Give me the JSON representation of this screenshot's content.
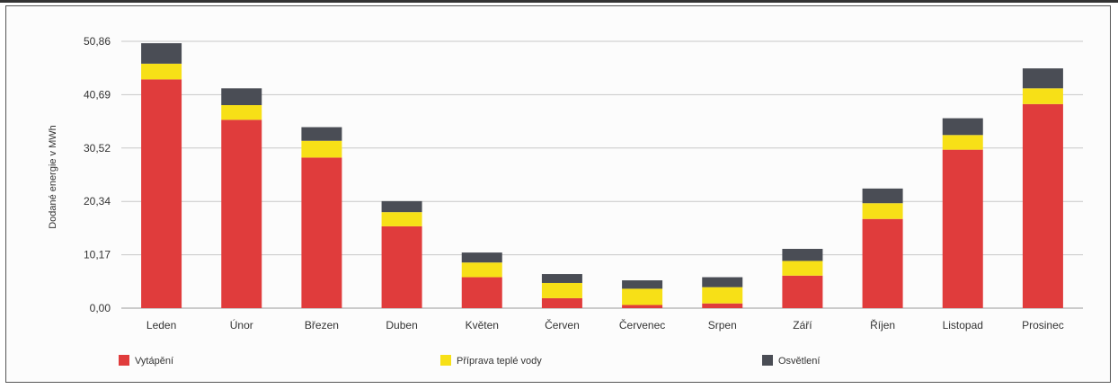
{
  "chart_data": {
    "type": "bar",
    "stacked": true,
    "title": "",
    "xlabel": "",
    "ylabel": "Dodané energie v MWh",
    "ylim": [
      0,
      50.86
    ],
    "yticks": [
      "50,86",
      "40,69",
      "30,52",
      "20,34",
      "10,17",
      "0,00"
    ],
    "ytick_values": [
      50.86,
      40.69,
      30.52,
      20.34,
      10.17,
      0
    ],
    "grid": true,
    "legend_position": "bottom",
    "categories": [
      "Leden",
      "Únor",
      "Březen",
      "Duben",
      "Květen",
      "Červen",
      "Červenec",
      "Srpen",
      "Září",
      "Říjen",
      "Listopad",
      "Prosinec"
    ],
    "series": [
      {
        "name": "Vytápění",
        "color": "#e03c3c",
        "values": [
          43.6,
          35.9,
          28.7,
          15.6,
          5.9,
          1.9,
          0.6,
          0.9,
          6.2,
          17.0,
          30.2,
          38.9
        ]
      },
      {
        "name": "Příprava teplé vody",
        "color": "#f7e017",
        "values": [
          3.0,
          2.8,
          3.2,
          2.7,
          2.8,
          2.9,
          3.1,
          3.1,
          2.8,
          3.0,
          2.8,
          3.0
        ]
      },
      {
        "name": "Osvětlení",
        "color": "#4a4d55",
        "values": [
          3.9,
          3.2,
          2.6,
          2.1,
          1.9,
          1.7,
          1.6,
          1.9,
          2.3,
          2.8,
          3.2,
          3.8
        ]
      }
    ]
  }
}
